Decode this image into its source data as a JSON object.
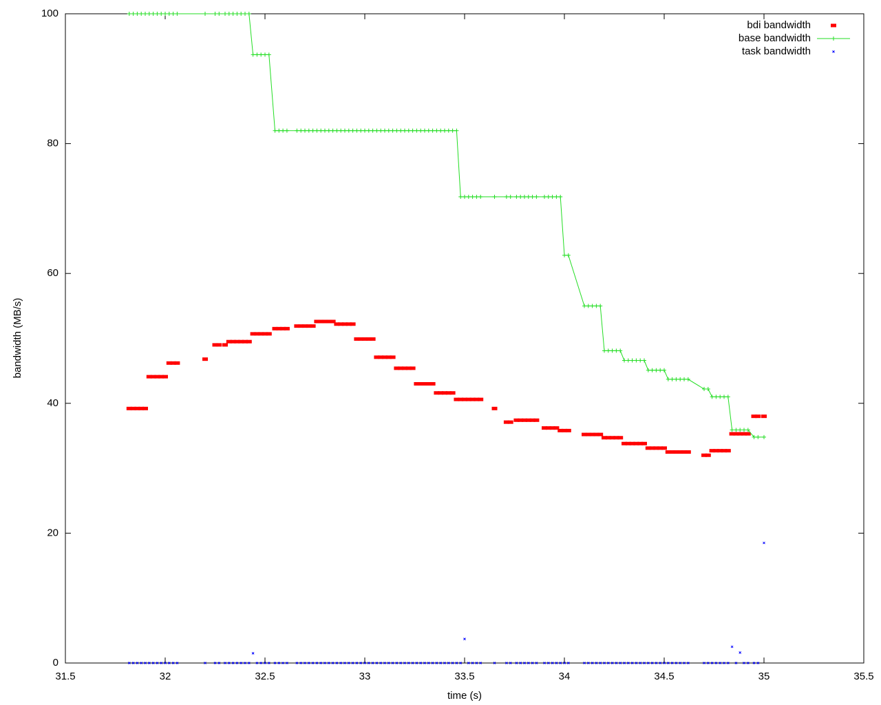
{
  "chart_data": {
    "type": "scatter",
    "xlabel": "time (s)",
    "ylabel": "bandwidth (MB/s)",
    "xlim": [
      31.5,
      35.5
    ],
    "xticks": [
      31.5,
      32,
      32.5,
      33,
      33.5,
      34,
      34.5,
      35,
      35.5
    ],
    "ylim": [
      0,
      100
    ],
    "yticks": [
      0,
      20,
      40,
      60,
      80,
      100
    ],
    "legend": "top-right",
    "x": [
      31.82,
      31.84,
      31.86,
      31.88,
      31.9,
      31.92,
      31.94,
      31.96,
      31.98,
      32,
      32.02,
      32.04,
      32.06,
      32.2,
      32.25,
      32.27,
      32.3,
      32.32,
      32.34,
      32.36,
      32.38,
      32.4,
      32.42,
      32.44,
      32.46,
      32.48,
      32.5,
      32.52,
      32.55,
      32.57,
      32.59,
      32.61,
      32.66,
      32.68,
      32.7,
      32.72,
      32.74,
      32.76,
      32.78,
      32.8,
      32.82,
      32.84,
      32.86,
      32.88,
      32.9,
      32.92,
      32.94,
      32.96,
      32.98,
      33,
      33.02,
      33.04,
      33.06,
      33.08,
      33.1,
      33.12,
      33.14,
      33.16,
      33.18,
      33.2,
      33.22,
      33.24,
      33.26,
      33.28,
      33.3,
      33.32,
      33.34,
      33.36,
      33.38,
      33.4,
      33.42,
      33.44,
      33.46,
      33.48,
      33.5,
      33.52,
      33.54,
      33.56,
      33.58,
      33.65,
      33.71,
      33.73,
      33.76,
      33.78,
      33.8,
      33.82,
      33.84,
      33.86,
      33.9,
      33.92,
      33.94,
      33.96,
      33.98,
      34,
      34.02,
      34.1,
      34.12,
      34.14,
      34.16,
      34.18,
      34.2,
      34.22,
      34.24,
      34.26,
      34.28,
      34.3,
      34.32,
      34.34,
      34.36,
      34.38,
      34.4,
      34.42,
      34.44,
      34.46,
      34.48,
      34.5,
      34.52,
      34.54,
      34.56,
      34.58,
      34.6,
      34.62,
      34.7,
      34.72,
      34.74,
      34.76,
      34.78,
      34.8,
      34.82,
      34.84,
      34.86,
      34.88,
      34.9,
      34.92,
      34.95,
      34.97,
      35
    ],
    "series": [
      {
        "name": "bdi bandwidth",
        "color": "#ff0000",
        "style": "points",
        "values": [
          39.2,
          39.2,
          39.2,
          39.2,
          39.2,
          44.1,
          44.1,
          44.1,
          44.1,
          44.1,
          46.2,
          46.2,
          46.2,
          46.8,
          49.0,
          49.0,
          49.0,
          49.5,
          49.5,
          49.5,
          49.5,
          49.5,
          49.5,
          50.7,
          50.7,
          50.7,
          50.7,
          50.7,
          51.5,
          51.5,
          51.5,
          51.5,
          51.9,
          51.9,
          51.9,
          51.9,
          51.9,
          52.6,
          52.6,
          52.6,
          52.6,
          52.6,
          52.2,
          52.2,
          52.2,
          52.2,
          52.2,
          49.9,
          49.9,
          49.9,
          49.9,
          49.9,
          47.1,
          47.1,
          47.1,
          47.1,
          47.1,
          45.4,
          45.4,
          45.4,
          45.4,
          45.4,
          43.0,
          43.0,
          43.0,
          43.0,
          43.0,
          41.6,
          41.6,
          41.6,
          41.6,
          41.6,
          40.6,
          40.6,
          40.6,
          40.6,
          40.6,
          40.6,
          40.6,
          39.2,
          37.1,
          37.1,
          37.4,
          37.4,
          37.4,
          37.4,
          37.4,
          37.4,
          36.2,
          36.2,
          36.2,
          36.2,
          35.8,
          35.8,
          35.8,
          35.2,
          35.2,
          35.2,
          35.2,
          35.2,
          34.7,
          34.7,
          34.7,
          34.7,
          34.7,
          33.8,
          33.8,
          33.8,
          33.8,
          33.8,
          33.8,
          33.1,
          33.1,
          33.1,
          33.1,
          33.1,
          32.5,
          32.5,
          32.5,
          32.5,
          32.5,
          32.5,
          32.0,
          32.0,
          32.7,
          32.7,
          32.7,
          32.7,
          32.7,
          35.3,
          35.3,
          35.3,
          35.3,
          35.3,
          38.0,
          38.0,
          38.0
        ]
      },
      {
        "name": "base bandwidth",
        "color": "#22dd22",
        "style": "linespoints",
        "values": [
          100,
          100,
          100,
          100,
          100,
          100,
          100,
          100,
          100,
          100,
          100,
          100,
          100,
          100,
          100,
          100,
          100,
          100,
          100,
          100,
          100,
          100,
          100,
          93.7,
          93.7,
          93.7,
          93.7,
          93.7,
          82,
          82,
          82,
          82,
          82,
          82,
          82,
          82,
          82,
          82,
          82,
          82,
          82,
          82,
          82,
          82,
          82,
          82,
          82,
          82,
          82,
          82,
          82,
          82,
          82,
          82,
          82,
          82,
          82,
          82,
          82,
          82,
          82,
          82,
          82,
          82,
          82,
          82,
          82,
          82,
          82,
          82,
          82,
          82,
          82,
          71.8,
          71.8,
          71.8,
          71.8,
          71.8,
          71.8,
          71.8,
          71.8,
          71.8,
          71.8,
          71.8,
          71.8,
          71.8,
          71.8,
          71.8,
          71.8,
          71.8,
          71.8,
          71.8,
          71.8,
          62.8,
          62.8,
          55,
          55,
          55,
          55,
          55,
          48.1,
          48.1,
          48.1,
          48.1,
          48.1,
          46.6,
          46.6,
          46.6,
          46.6,
          46.6,
          46.6,
          45.1,
          45.1,
          45.1,
          45.1,
          45.1,
          43.7,
          43.7,
          43.7,
          43.7,
          43.7,
          43.7,
          42.2,
          42.2,
          41,
          41,
          41,
          41,
          41,
          35.9,
          35.9,
          35.9,
          35.9,
          35.9,
          34.8,
          34.8,
          34.8
        ]
      },
      {
        "name": "task bandwidth",
        "color": "#0000ff",
        "style": "crosses",
        "values": [
          0,
          0,
          0,
          0,
          0,
          0,
          0,
          0,
          0,
          0,
          0,
          0,
          0,
          0,
          0,
          0,
          0,
          0,
          0,
          0,
          0,
          0,
          0,
          1.5,
          0,
          0,
          0,
          0,
          0,
          0,
          0,
          0,
          0,
          0,
          0,
          0,
          0,
          0,
          0,
          0,
          0,
          0,
          0,
          0,
          0,
          0,
          0,
          0,
          0,
          0,
          0,
          0,
          0,
          0,
          0,
          0,
          0,
          0,
          0,
          0,
          0,
          0,
          0,
          0,
          0,
          0,
          0,
          0,
          0,
          0,
          0,
          0,
          0,
          0,
          3.7,
          0,
          0,
          0,
          0,
          0,
          0,
          0,
          0,
          0,
          0,
          0,
          0,
          0,
          0,
          0,
          0,
          0,
          0,
          0,
          0,
          0,
          0,
          0,
          0,
          0,
          0,
          0,
          0,
          0,
          0,
          0,
          0,
          0,
          0,
          0,
          0,
          0,
          0,
          0,
          0,
          0,
          0,
          0,
          0,
          0,
          0,
          0,
          0,
          0,
          0,
          0,
          0,
          0,
          0,
          2.5,
          0,
          1.6,
          0,
          0,
          0,
          0,
          18.5
        ]
      }
    ]
  }
}
